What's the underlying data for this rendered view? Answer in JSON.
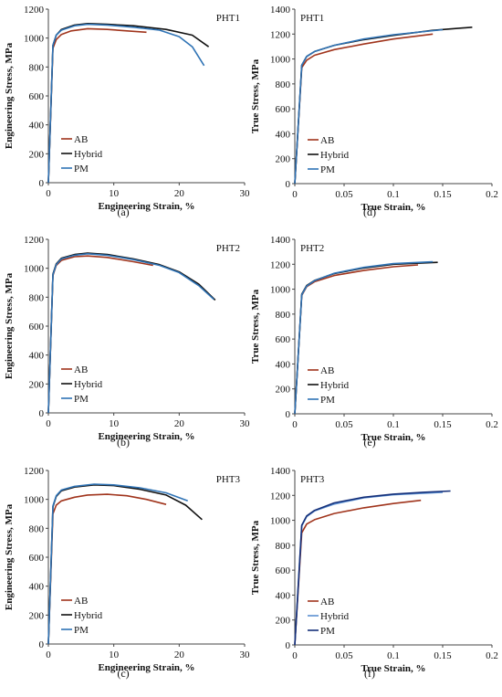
{
  "chart_data": [
    {
      "type": "line",
      "panel_label": "(a)",
      "title": "PHT1",
      "xlabel": "Engineering Strain, %",
      "ylabel": "Engineering Stress, MPa",
      "xlim": [
        0,
        30
      ],
      "ylim": [
        0,
        1200
      ],
      "xticks": [
        "0",
        "10",
        "20",
        "30"
      ],
      "yticks": [
        "0",
        "200",
        "400",
        "600",
        "800",
        "1000",
        "1200"
      ],
      "legend_position": "bottom-left",
      "series": [
        {
          "name": "AB",
          "color": "#a0341c",
          "x": [
            0,
            0.7,
            1.2,
            2,
            3.5,
            6,
            9,
            12,
            15
          ],
          "y": [
            0,
            930,
            990,
            1025,
            1050,
            1065,
            1060,
            1050,
            1040
          ]
        },
        {
          "name": "Hybrid",
          "color": "#111111",
          "x": [
            0,
            0.7,
            1.2,
            2,
            4,
            6,
            9,
            13,
            18,
            22,
            24.5
          ],
          "y": [
            0,
            950,
            1020,
            1060,
            1090,
            1100,
            1095,
            1085,
            1060,
            1020,
            940
          ]
        },
        {
          "name": "PM",
          "color": "#2f73b5",
          "x": [
            0,
            0.7,
            1.2,
            2,
            4,
            6,
            9,
            13,
            17,
            20,
            22,
            23.8
          ],
          "y": [
            0,
            950,
            1020,
            1055,
            1085,
            1095,
            1090,
            1075,
            1055,
            1010,
            940,
            810
          ]
        }
      ]
    },
    {
      "type": "line",
      "panel_label": "(d)",
      "title": "PHT1",
      "xlabel": "True Strain, %",
      "ylabel": "True Stress, MPa",
      "xlim": [
        0,
        0.2
      ],
      "ylim": [
        0,
        1400
      ],
      "xticks": [
        "0",
        "0.05",
        "0.1",
        "0.15",
        "0.2"
      ],
      "yticks": [
        "0",
        "200",
        "400",
        "600",
        "800",
        "1000",
        "1200",
        "1400"
      ],
      "legend_position": "bottom-left",
      "series": [
        {
          "name": "AB",
          "color": "#a0341c",
          "x": [
            0,
            0.007,
            0.012,
            0.02,
            0.04,
            0.07,
            0.1,
            0.14
          ],
          "y": [
            0,
            930,
            990,
            1030,
            1075,
            1120,
            1160,
            1200
          ]
        },
        {
          "name": "Hybrid",
          "color": "#111111",
          "x": [
            0,
            0.007,
            0.012,
            0.02,
            0.04,
            0.07,
            0.1,
            0.14,
            0.18
          ],
          "y": [
            0,
            950,
            1020,
            1060,
            1110,
            1155,
            1190,
            1230,
            1255
          ]
        },
        {
          "name": "PM",
          "color": "#2f73b5",
          "x": [
            0,
            0.007,
            0.012,
            0.02,
            0.04,
            0.07,
            0.1,
            0.15
          ],
          "y": [
            0,
            950,
            1020,
            1060,
            1110,
            1160,
            1195,
            1235
          ]
        }
      ]
    },
    {
      "type": "line",
      "panel_label": "(b)",
      "title": "PHT2",
      "xlabel": "Engineering Strain, %",
      "ylabel": "Engineering Stress, MPa",
      "xlim": [
        0,
        30
      ],
      "ylim": [
        0,
        1200
      ],
      "xticks": [
        "0",
        "10",
        "20",
        "30"
      ],
      "yticks": [
        "0",
        "200",
        "400",
        "600",
        "800",
        "1000",
        "1200"
      ],
      "legend_position": "bottom-left",
      "series": [
        {
          "name": "AB",
          "color": "#a0341c",
          "x": [
            0,
            0.7,
            1.2,
            2,
            4,
            6,
            9,
            13,
            16
          ],
          "y": [
            0,
            950,
            1020,
            1055,
            1080,
            1085,
            1075,
            1045,
            1020
          ]
        },
        {
          "name": "Hybrid",
          "color": "#111111",
          "x": [
            0,
            0.7,
            1.2,
            2,
            4,
            6,
            9,
            13,
            17,
            20,
            23,
            25.5
          ],
          "y": [
            0,
            960,
            1030,
            1070,
            1095,
            1105,
            1095,
            1065,
            1025,
            975,
            890,
            780
          ]
        },
        {
          "name": "PM",
          "color": "#2f73b5",
          "x": [
            0,
            0.7,
            1.2,
            2,
            4,
            6,
            9,
            13,
            17,
            20,
            23,
            25.3
          ],
          "y": [
            0,
            955,
            1025,
            1065,
            1090,
            1100,
            1090,
            1060,
            1020,
            970,
            880,
            785
          ]
        }
      ]
    },
    {
      "type": "line",
      "panel_label": "(e)",
      "title": "PHT2",
      "xlabel": "True Strain, %",
      "ylabel": "True Stress, MPa",
      "xlim": [
        0,
        0.2
      ],
      "ylim": [
        0,
        1400
      ],
      "xticks": [
        "0",
        "0.05",
        "0.1",
        "0.15",
        "0.2"
      ],
      "yticks": [
        "0",
        "200",
        "400",
        "600",
        "800",
        "1000",
        "1200",
        "1400"
      ],
      "legend_position": "bottom-left",
      "series": [
        {
          "name": "AB",
          "color": "#a0341c",
          "x": [
            0,
            0.007,
            0.012,
            0.02,
            0.04,
            0.07,
            0.1,
            0.125
          ],
          "y": [
            0,
            950,
            1020,
            1060,
            1110,
            1150,
            1180,
            1195
          ]
        },
        {
          "name": "Hybrid",
          "color": "#111111",
          "x": [
            0,
            0.007,
            0.012,
            0.02,
            0.04,
            0.07,
            0.1,
            0.145
          ],
          "y": [
            0,
            960,
            1030,
            1070,
            1125,
            1170,
            1200,
            1215
          ]
        },
        {
          "name": "PM",
          "color": "#2f73b5",
          "x": [
            0,
            0.007,
            0.012,
            0.02,
            0.04,
            0.07,
            0.1,
            0.14
          ],
          "y": [
            0,
            955,
            1025,
            1068,
            1128,
            1175,
            1205,
            1220
          ]
        }
      ]
    },
    {
      "type": "line",
      "panel_label": "(c)",
      "title": "PHT3",
      "xlabel": "Engineering Strain, %",
      "ylabel": "Engineering Stress, MPa",
      "xlim": [
        0,
        30
      ],
      "ylim": [
        0,
        1200
      ],
      "xticks": [
        "0",
        "10",
        "20",
        "30"
      ],
      "yticks": [
        "0",
        "200",
        "400",
        "600",
        "800",
        "1000",
        "1200"
      ],
      "legend_position": "bottom-left",
      "series": [
        {
          "name": "AB",
          "color": "#a0341c",
          "x": [
            0,
            0.7,
            1.2,
            2,
            4,
            6,
            9,
            12,
            15,
            18
          ],
          "y": [
            0,
            900,
            960,
            990,
            1015,
            1030,
            1035,
            1025,
            1000,
            965
          ]
        },
        {
          "name": "Hybrid",
          "color": "#111111",
          "x": [
            0,
            0.7,
            1.2,
            2,
            4,
            7,
            10,
            14,
            18,
            21,
            23.5
          ],
          "y": [
            0,
            950,
            1020,
            1060,
            1085,
            1100,
            1095,
            1070,
            1030,
            960,
            860
          ]
        },
        {
          "name": "PM",
          "color": "#2f73b5",
          "x": [
            0,
            0.7,
            1.2,
            2,
            4,
            7,
            10,
            14,
            18,
            21.3
          ],
          "y": [
            0,
            955,
            1025,
            1065,
            1090,
            1105,
            1100,
            1080,
            1045,
            990
          ]
        }
      ]
    },
    {
      "type": "line",
      "panel_label": "(f)",
      "title": "PHT3",
      "xlabel": "True Strain, %",
      "ylabel": "True Stress, MPa",
      "xlim": [
        0,
        0.2
      ],
      "ylim": [
        0,
        1400
      ],
      "xticks": [
        "0",
        "0.05",
        "0.1",
        "0.15",
        "0.2"
      ],
      "yticks": [
        "0",
        "200",
        "400",
        "600",
        "800",
        "1000",
        "1200",
        "1400"
      ],
      "legend_position": "bottom-left",
      "series": [
        {
          "name": "AB",
          "color": "#a0341c",
          "x": [
            0,
            0.007,
            0.012,
            0.02,
            0.04,
            0.07,
            0.1,
            0.128
          ],
          "y": [
            0,
            900,
            970,
            1005,
            1055,
            1100,
            1135,
            1160
          ]
        },
        {
          "name": "Hybrid",
          "color": "#5b8fd0",
          "x": [
            0,
            0.007,
            0.012,
            0.02,
            0.04,
            0.07,
            0.1,
            0.15
          ],
          "y": [
            0,
            955,
            1030,
            1075,
            1130,
            1180,
            1205,
            1225
          ]
        },
        {
          "name": "PM",
          "color": "#15307a",
          "x": [
            0,
            0.007,
            0.012,
            0.02,
            0.04,
            0.07,
            0.1,
            0.13,
            0.158
          ],
          "y": [
            0,
            960,
            1035,
            1080,
            1140,
            1185,
            1210,
            1225,
            1235
          ]
        }
      ]
    }
  ]
}
